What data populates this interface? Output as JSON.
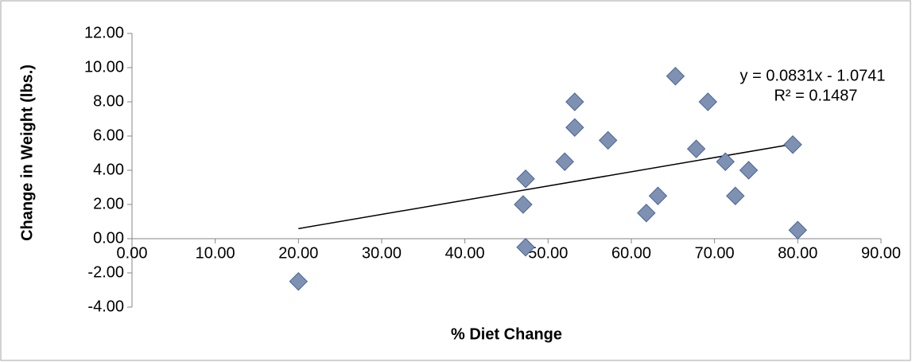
{
  "chart_data": {
    "type": "scatter",
    "x_label": "% Diet Change",
    "y_label": "Change in Weight (lbs.)",
    "x": [
      20,
      47,
      47.3,
      47.3,
      52,
      53.2,
      53.2,
      57.2,
      61.8,
      63.2,
      65.3,
      67.8,
      69.2,
      71.3,
      72.5,
      74.1,
      79.4,
      80
    ],
    "values": [
      -2.5,
      2,
      3.5,
      -0.5,
      4.5,
      6.5,
      8,
      5.75,
      1.5,
      2.5,
      9.5,
      5.25,
      8,
      4.5,
      2.5,
      4,
      5.5,
      0.5
    ],
    "color": "#7f91b3",
    "xlim": [
      0,
      90
    ],
    "ylim": [
      -4,
      12
    ],
    "xticks": [
      {
        "value": 0,
        "label": "0.00"
      },
      {
        "value": 10,
        "label": "10.00"
      },
      {
        "value": 20,
        "label": "20.00"
      },
      {
        "value": 30,
        "label": "30.00"
      },
      {
        "value": 40,
        "label": "40.00"
      },
      {
        "value": 50,
        "label": "50.00"
      },
      {
        "value": 60,
        "label": "60.00"
      },
      {
        "value": 70,
        "label": "70.00"
      },
      {
        "value": 80,
        "label": "80.00"
      },
      {
        "value": 90,
        "label": "90.00"
      }
    ],
    "yticks": [
      {
        "value": -4,
        "label": "-4.00"
      },
      {
        "value": -2,
        "label": "-2.00"
      },
      {
        "value": 0,
        "label": "0.00"
      },
      {
        "value": 2,
        "label": "2.00"
      },
      {
        "value": 4,
        "label": "4.00"
      },
      {
        "value": 6,
        "label": "6.00"
      },
      {
        "value": 8,
        "label": "8.00"
      },
      {
        "value": 10,
        "label": "10.00"
      },
      {
        "value": 12,
        "label": "12.00"
      }
    ],
    "trendline": {
      "slope": 0.0831,
      "intercept": -1.0741,
      "equation": "y = 0.0831x - 1.0741",
      "r_squared": "R² = 0.1487"
    }
  }
}
